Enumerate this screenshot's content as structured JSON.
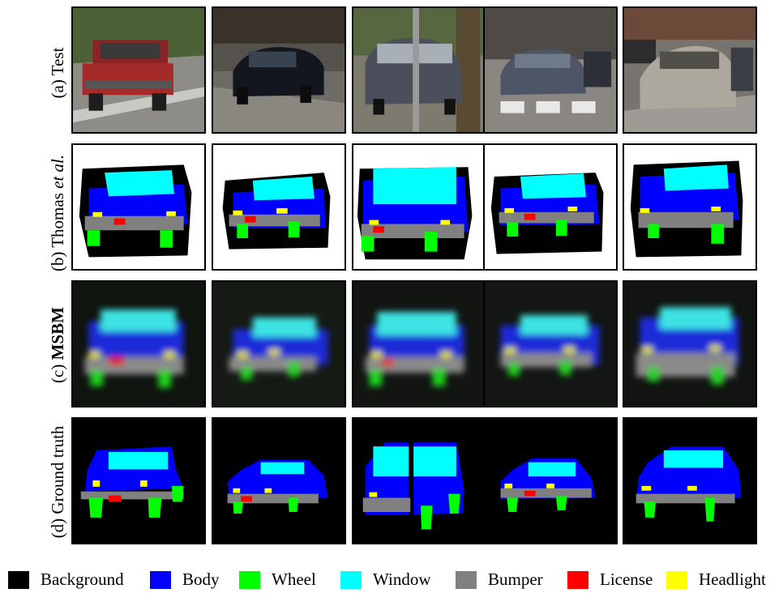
{
  "rows": [
    {
      "prefix": "(a) ",
      "main": "Test",
      "suffix": "",
      "style": "plain"
    },
    {
      "prefix": "(b) Thomas ",
      "main": "et al.",
      "suffix": "",
      "style": "italic-part"
    },
    {
      "prefix": "(c) ",
      "main": "MSBM",
      "suffix": "",
      "style": "bold-part"
    },
    {
      "prefix": "(d) ",
      "main": "Ground truth",
      "suffix": "",
      "style": "plain"
    }
  ],
  "legend": [
    {
      "label": "Background",
      "color": "#000000"
    },
    {
      "label": "Body",
      "color": "#0000ff"
    },
    {
      "label": "Wheel",
      "color": "#00ff00"
    },
    {
      "label": "Window",
      "color": "#00ffff"
    },
    {
      "label": "Bumper",
      "color": "#808080"
    },
    {
      "label": "License",
      "color": "#ff0000"
    },
    {
      "label": "Headlight",
      "color": "#ffff00"
    }
  ],
  "photo_descriptions": [
    "red-suv",
    "black-sedan",
    "grey-minivan",
    "grey-sedan",
    "silver-minivan"
  ]
}
